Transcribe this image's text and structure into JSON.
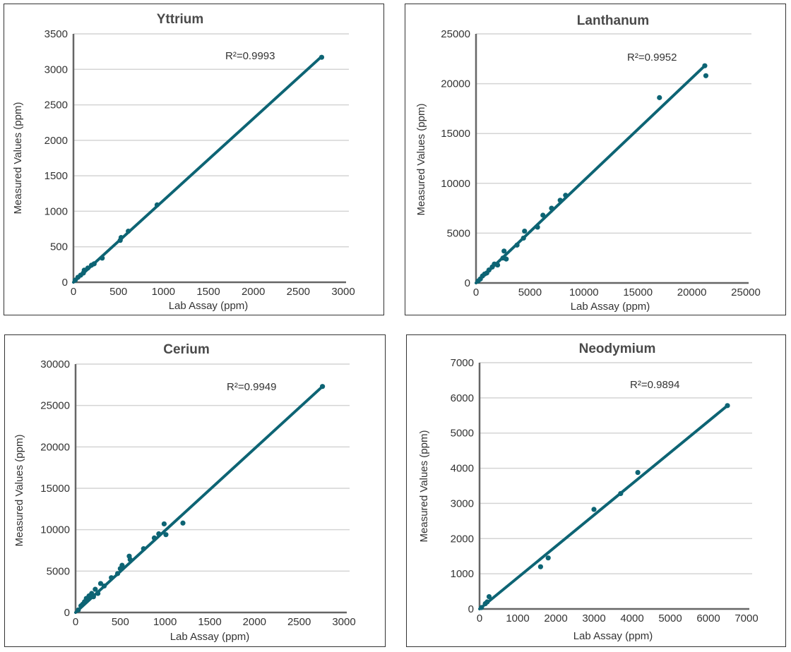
{
  "chart_data": [
    {
      "type": "scatter",
      "title": "Yttrium",
      "xlabel": "Lab Assay (ppm)",
      "ylabel": "Measured Values (ppm)",
      "xlim": [
        0,
        3000
      ],
      "ylim": [
        0,
        3500
      ],
      "xticks": [
        "0",
        "500",
        "1000",
        "1500",
        "2000",
        "2500",
        "3000"
      ],
      "yticks": [
        "0",
        "500",
        "1000",
        "1500",
        "2000",
        "2500",
        "3000",
        "3500"
      ],
      "annotation": "R²=0.9993",
      "color": "#0d6474",
      "grid": true,
      "trendline": {
        "x": [
          0,
          2750
        ],
        "y": [
          0,
          3170
        ]
      },
      "points": [
        {
          "x": 20,
          "y": 30
        },
        {
          "x": 50,
          "y": 70
        },
        {
          "x": 80,
          "y": 100
        },
        {
          "x": 110,
          "y": 130
        },
        {
          "x": 120,
          "y": 170
        },
        {
          "x": 160,
          "y": 200
        },
        {
          "x": 200,
          "y": 240
        },
        {
          "x": 230,
          "y": 260
        },
        {
          "x": 320,
          "y": 340
        },
        {
          "x": 520,
          "y": 590
        },
        {
          "x": 530,
          "y": 630
        },
        {
          "x": 610,
          "y": 720
        },
        {
          "x": 930,
          "y": 1090
        },
        {
          "x": 2760,
          "y": 3170
        }
      ]
    },
    {
      "type": "scatter",
      "title": "Lanthanum",
      "xlabel": "Lab Assay (ppm)",
      "ylabel": "Measured Values (ppm)",
      "xlim": [
        0,
        25000
      ],
      "ylim": [
        0,
        25000
      ],
      "xticks": [
        "0",
        "5000",
        "10000",
        "15000",
        "20000",
        "25000"
      ],
      "yticks": [
        "0",
        "5000",
        "10000",
        "15000",
        "20000",
        "25000"
      ],
      "annotation": "R²=0.9952",
      "color": "#0d6474",
      "grid": true,
      "trendline": {
        "x": [
          0,
          21200
        ],
        "y": [
          0,
          21800
        ]
      },
      "points": [
        {
          "x": 200,
          "y": 200
        },
        {
          "x": 400,
          "y": 400
        },
        {
          "x": 600,
          "y": 700
        },
        {
          "x": 800,
          "y": 900
        },
        {
          "x": 1000,
          "y": 1000
        },
        {
          "x": 1200,
          "y": 1300
        },
        {
          "x": 1500,
          "y": 1600
        },
        {
          "x": 1700,
          "y": 1900
        },
        {
          "x": 2000,
          "y": 1800
        },
        {
          "x": 2500,
          "y": 2500
        },
        {
          "x": 2600,
          "y": 3200
        },
        {
          "x": 2800,
          "y": 2400
        },
        {
          "x": 3800,
          "y": 3800
        },
        {
          "x": 4400,
          "y": 4500
        },
        {
          "x": 4500,
          "y": 5200
        },
        {
          "x": 5700,
          "y": 5600
        },
        {
          "x": 6200,
          "y": 6800
        },
        {
          "x": 7000,
          "y": 7500
        },
        {
          "x": 7800,
          "y": 8300
        },
        {
          "x": 8300,
          "y": 8800
        },
        {
          "x": 17000,
          "y": 18600
        },
        {
          "x": 21200,
          "y": 21800
        },
        {
          "x": 21300,
          "y": 20800
        }
      ]
    },
    {
      "type": "scatter",
      "title": "Cerium",
      "xlabel": "Lab Assay (ppm)",
      "ylabel": "Measured Values (ppm)",
      "xlim": [
        0,
        3000
      ],
      "ylim": [
        0,
        30000
      ],
      "xticks": [
        "0",
        "500",
        "1000",
        "1500",
        "2000",
        "2500",
        "3000"
      ],
      "yticks": [
        "0",
        "5000",
        "10000",
        "15000",
        "20000",
        "25000",
        "30000"
      ],
      "annotation": "R²=0.9949",
      "color": "#0d6474",
      "grid": true,
      "trendline": {
        "x": [
          0,
          2760
        ],
        "y": [
          0,
          27300
        ]
      },
      "points": [
        {
          "x": 30,
          "y": 300
        },
        {
          "x": 60,
          "y": 800
        },
        {
          "x": 80,
          "y": 1000
        },
        {
          "x": 100,
          "y": 1300
        },
        {
          "x": 120,
          "y": 1700
        },
        {
          "x": 150,
          "y": 2000
        },
        {
          "x": 180,
          "y": 2300
        },
        {
          "x": 200,
          "y": 1900
        },
        {
          "x": 220,
          "y": 2800
        },
        {
          "x": 250,
          "y": 2300
        },
        {
          "x": 280,
          "y": 3500
        },
        {
          "x": 320,
          "y": 3200
        },
        {
          "x": 400,
          "y": 4200
        },
        {
          "x": 470,
          "y": 4700
        },
        {
          "x": 500,
          "y": 5300
        },
        {
          "x": 520,
          "y": 5700
        },
        {
          "x": 600,
          "y": 6800
        },
        {
          "x": 610,
          "y": 6400
        },
        {
          "x": 760,
          "y": 7700
        },
        {
          "x": 880,
          "y": 9000
        },
        {
          "x": 930,
          "y": 9500
        },
        {
          "x": 990,
          "y": 10700
        },
        {
          "x": 1010,
          "y": 9400
        },
        {
          "x": 1200,
          "y": 10800
        },
        {
          "x": 2760,
          "y": 27300
        }
      ]
    },
    {
      "type": "scatter",
      "title": "Neodymium",
      "xlabel": "Lab Assay (ppm)",
      "ylabel": "Measured Values (ppm)",
      "xlim": [
        0,
        7000
      ],
      "ylim": [
        0,
        7000
      ],
      "xticks": [
        "0",
        "1000",
        "2000",
        "3000",
        "4000",
        "5000",
        "6000",
        "7000"
      ],
      "yticks": [
        "0",
        "1000",
        "2000",
        "3000",
        "4000",
        "5000",
        "6000",
        "7000"
      ],
      "annotation": "R²=0.9894",
      "color": "#0d6474",
      "grid": true,
      "trendline": {
        "x": [
          0,
          6500
        ],
        "y": [
          0,
          5780
        ]
      },
      "points": [
        {
          "x": 50,
          "y": 40
        },
        {
          "x": 150,
          "y": 150
        },
        {
          "x": 200,
          "y": 200
        },
        {
          "x": 250,
          "y": 350
        },
        {
          "x": 1600,
          "y": 1200
        },
        {
          "x": 1800,
          "y": 1450
        },
        {
          "x": 3000,
          "y": 2830
        },
        {
          "x": 3700,
          "y": 3280
        },
        {
          "x": 4150,
          "y": 3880
        },
        {
          "x": 6500,
          "y": 5780
        }
      ]
    }
  ]
}
